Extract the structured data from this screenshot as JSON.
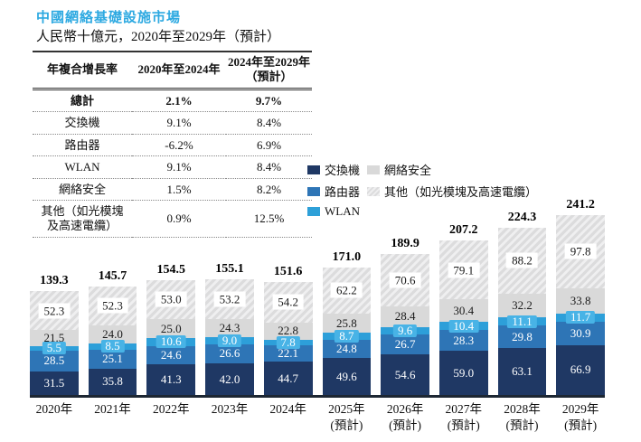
{
  "header": {
    "title": "中國網絡基礎設施市場",
    "subtitle": "人民幣十億元，2020年至2029年（預計）"
  },
  "table": {
    "columns": {
      "metric": "年複合增長率",
      "period1": "2020年至2024年",
      "period2_line1": "2024年至2029年",
      "period2_line2": "（預計）"
    },
    "rows": [
      {
        "label": "總計",
        "cagr_2020_2024": "2.1%",
        "cagr_2024_2029": "9.7%",
        "bold": true
      },
      {
        "label": "交換機",
        "cagr_2020_2024": "9.1%",
        "cagr_2024_2029": "8.4%",
        "bold": false
      },
      {
        "label": "路由器",
        "cagr_2020_2024": "-6.2%",
        "cagr_2024_2029": "6.9%",
        "bold": false
      },
      {
        "label": "WLAN",
        "cagr_2020_2024": "9.1%",
        "cagr_2024_2029": "8.4%",
        "bold": false
      },
      {
        "label": "網絡安全",
        "cagr_2020_2024": "1.5%",
        "cagr_2024_2029": "8.2%",
        "bold": false
      },
      {
        "label": "其他（如光模塊及高速電纜）",
        "label_line1": "其他（如光模塊",
        "label_line2": "及高速電纜）",
        "cagr_2020_2024": "0.9%",
        "cagr_2024_2029": "12.5%",
        "bold": false
      }
    ]
  },
  "legend": {
    "items": [
      {
        "label": "交換機",
        "swatch": "navy",
        "col": 1
      },
      {
        "label": "網絡安全",
        "swatch": "gray",
        "col": 2
      },
      {
        "label": "路由器",
        "swatch": "blue",
        "col": 1
      },
      {
        "label": "其他（如光模塊及高速電纜）",
        "swatch": "hatch",
        "col": 2
      },
      {
        "label": "WLAN",
        "swatch": "lightblue",
        "col": 1
      }
    ]
  },
  "chart_data": {
    "type": "bar",
    "stacked": true,
    "title": "中國網絡基礎設施市場",
    "ylabel": "人民幣十億元",
    "ylim": [
      0,
      250
    ],
    "legend_position": "right of table",
    "grid": false,
    "categories": [
      {
        "label": "2020年",
        "note": ""
      },
      {
        "label": "2021年",
        "note": ""
      },
      {
        "label": "2022年",
        "note": ""
      },
      {
        "label": "2023年",
        "note": ""
      },
      {
        "label": "2024年",
        "note": ""
      },
      {
        "label": "2025年",
        "note": "(預計)"
      },
      {
        "label": "2026年",
        "note": "(預計)"
      },
      {
        "label": "2027年",
        "note": "(預計)"
      },
      {
        "label": "2028年",
        "note": "(預計)"
      },
      {
        "label": "2029年",
        "note": "(預計)"
      }
    ],
    "series": [
      {
        "name": "交換機",
        "key": "switch",
        "color": "#1f3864",
        "values": [
          31.5,
          35.8,
          41.3,
          42.0,
          44.7,
          49.6,
          54.6,
          59.0,
          63.1,
          66.9
        ]
      },
      {
        "name": "路由器",
        "key": "router",
        "color": "#2e75b6",
        "values": [
          28.5,
          25.1,
          24.6,
          26.6,
          22.1,
          24.8,
          26.7,
          28.3,
          29.8,
          30.9
        ]
      },
      {
        "name": "WLAN",
        "key": "wlan",
        "color": "#2d9fd9",
        "values": [
          5.5,
          8.5,
          10.6,
          9.0,
          7.8,
          8.7,
          9.6,
          10.4,
          11.1,
          11.7
        ]
      },
      {
        "name": "網絡安全",
        "key": "security",
        "color": "#d9d9d9",
        "values": [
          21.5,
          24.0,
          25.0,
          24.3,
          22.8,
          25.8,
          28.4,
          30.4,
          32.2,
          33.8
        ]
      },
      {
        "name": "其他（如光模塊及高速電纜）",
        "key": "other",
        "color": "#dcdcdd-hatch",
        "values": [
          52.3,
          52.3,
          53.0,
          53.2,
          54.2,
          62.2,
          70.6,
          79.1,
          88.2,
          97.8
        ]
      }
    ],
    "totals": [
      139.3,
      145.7,
      154.5,
      155.1,
      151.6,
      171.0,
      189.9,
      207.2,
      224.3,
      241.2
    ]
  },
  "colors": {
    "accent_title": "#2da9e1",
    "navy": "#1f3864",
    "blue": "#2e75b6",
    "lightblue": "#2d9fd9",
    "gray": "#d9d9d9",
    "axis": "#1d2733"
  }
}
